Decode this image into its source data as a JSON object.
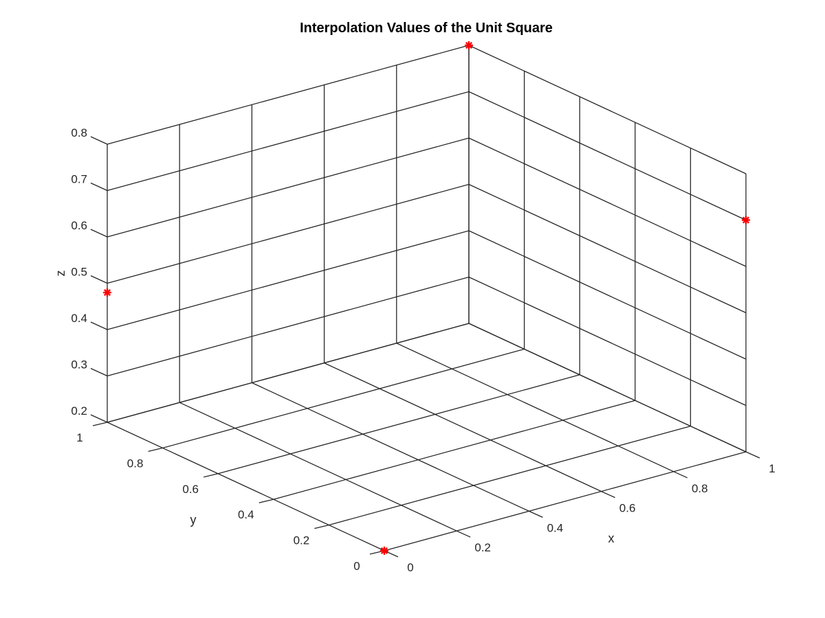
{
  "chart_data": {
    "type": "scatter",
    "projection": "3d",
    "title": "Interpolation Values of the Unit Square",
    "xlabel": "x",
    "ylabel": "y",
    "zlabel": "z",
    "xlim": [
      0,
      1
    ],
    "ylim": [
      0,
      1
    ],
    "zlim": [
      0.2,
      0.8
    ],
    "x_ticks": [
      "0",
      "0.2",
      "0.4",
      "0.6",
      "0.8",
      "1"
    ],
    "y_ticks": [
      "0",
      "0.2",
      "0.4",
      "0.6",
      "0.8",
      "1"
    ],
    "z_ticks": [
      "0.2",
      "0.3",
      "0.4",
      "0.5",
      "0.6",
      "0.7",
      "0.8"
    ],
    "grid": true,
    "marker": "*",
    "marker_color": "#ff0000",
    "points": [
      {
        "x": 0,
        "y": 0,
        "z": 0.2
      },
      {
        "x": 1,
        "y": 0,
        "z": 0.7
      },
      {
        "x": 0,
        "y": 1,
        "z": 0.48
      },
      {
        "x": 1,
        "y": 1,
        "z": 0.8
      }
    ]
  }
}
